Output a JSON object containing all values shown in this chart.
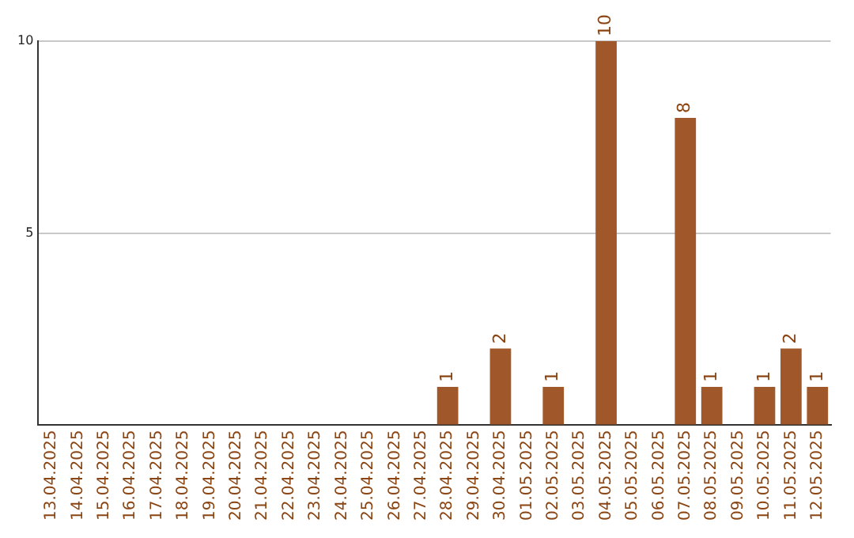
{
  "chart_data": {
    "type": "bar",
    "categories": [
      "13.04.2025",
      "14.04.2025",
      "15.04.2025",
      "16.04.2025",
      "17.04.2025",
      "18.04.2025",
      "19.04.2025",
      "20.04.2025",
      "21.04.2025",
      "22.04.2025",
      "23.04.2025",
      "24.04.2025",
      "25.04.2025",
      "26.04.2025",
      "27.04.2025",
      "28.04.2025",
      "29.04.2025",
      "30.04.2025",
      "01.05.2025",
      "02.05.2025",
      "03.05.2025",
      "04.05.2025",
      "05.05.2025",
      "06.05.2025",
      "07.05.2025",
      "08.05.2025",
      "09.05.2025",
      "10.05.2025",
      "11.05.2025",
      "12.05.2025"
    ],
    "values": [
      0,
      0,
      0,
      0,
      0,
      0,
      0,
      0,
      0,
      0,
      0,
      0,
      0,
      0,
      0,
      1,
      0,
      2,
      0,
      1,
      0,
      10,
      0,
      0,
      8,
      1,
      0,
      1,
      2,
      1
    ],
    "value_labels": [
      null,
      null,
      null,
      null,
      null,
      null,
      null,
      null,
      null,
      null,
      null,
      null,
      null,
      null,
      null,
      "1",
      null,
      "2",
      null,
      "1",
      null,
      "10",
      null,
      null,
      "8",
      "1",
      null,
      "1",
      "2",
      "1"
    ],
    "color": "#a0582a",
    "ylim": [
      0,
      10
    ],
    "yticks": [
      {
        "value": 0,
        "label": null
      },
      5,
      10
    ],
    "grid": "y",
    "legend": false
  }
}
